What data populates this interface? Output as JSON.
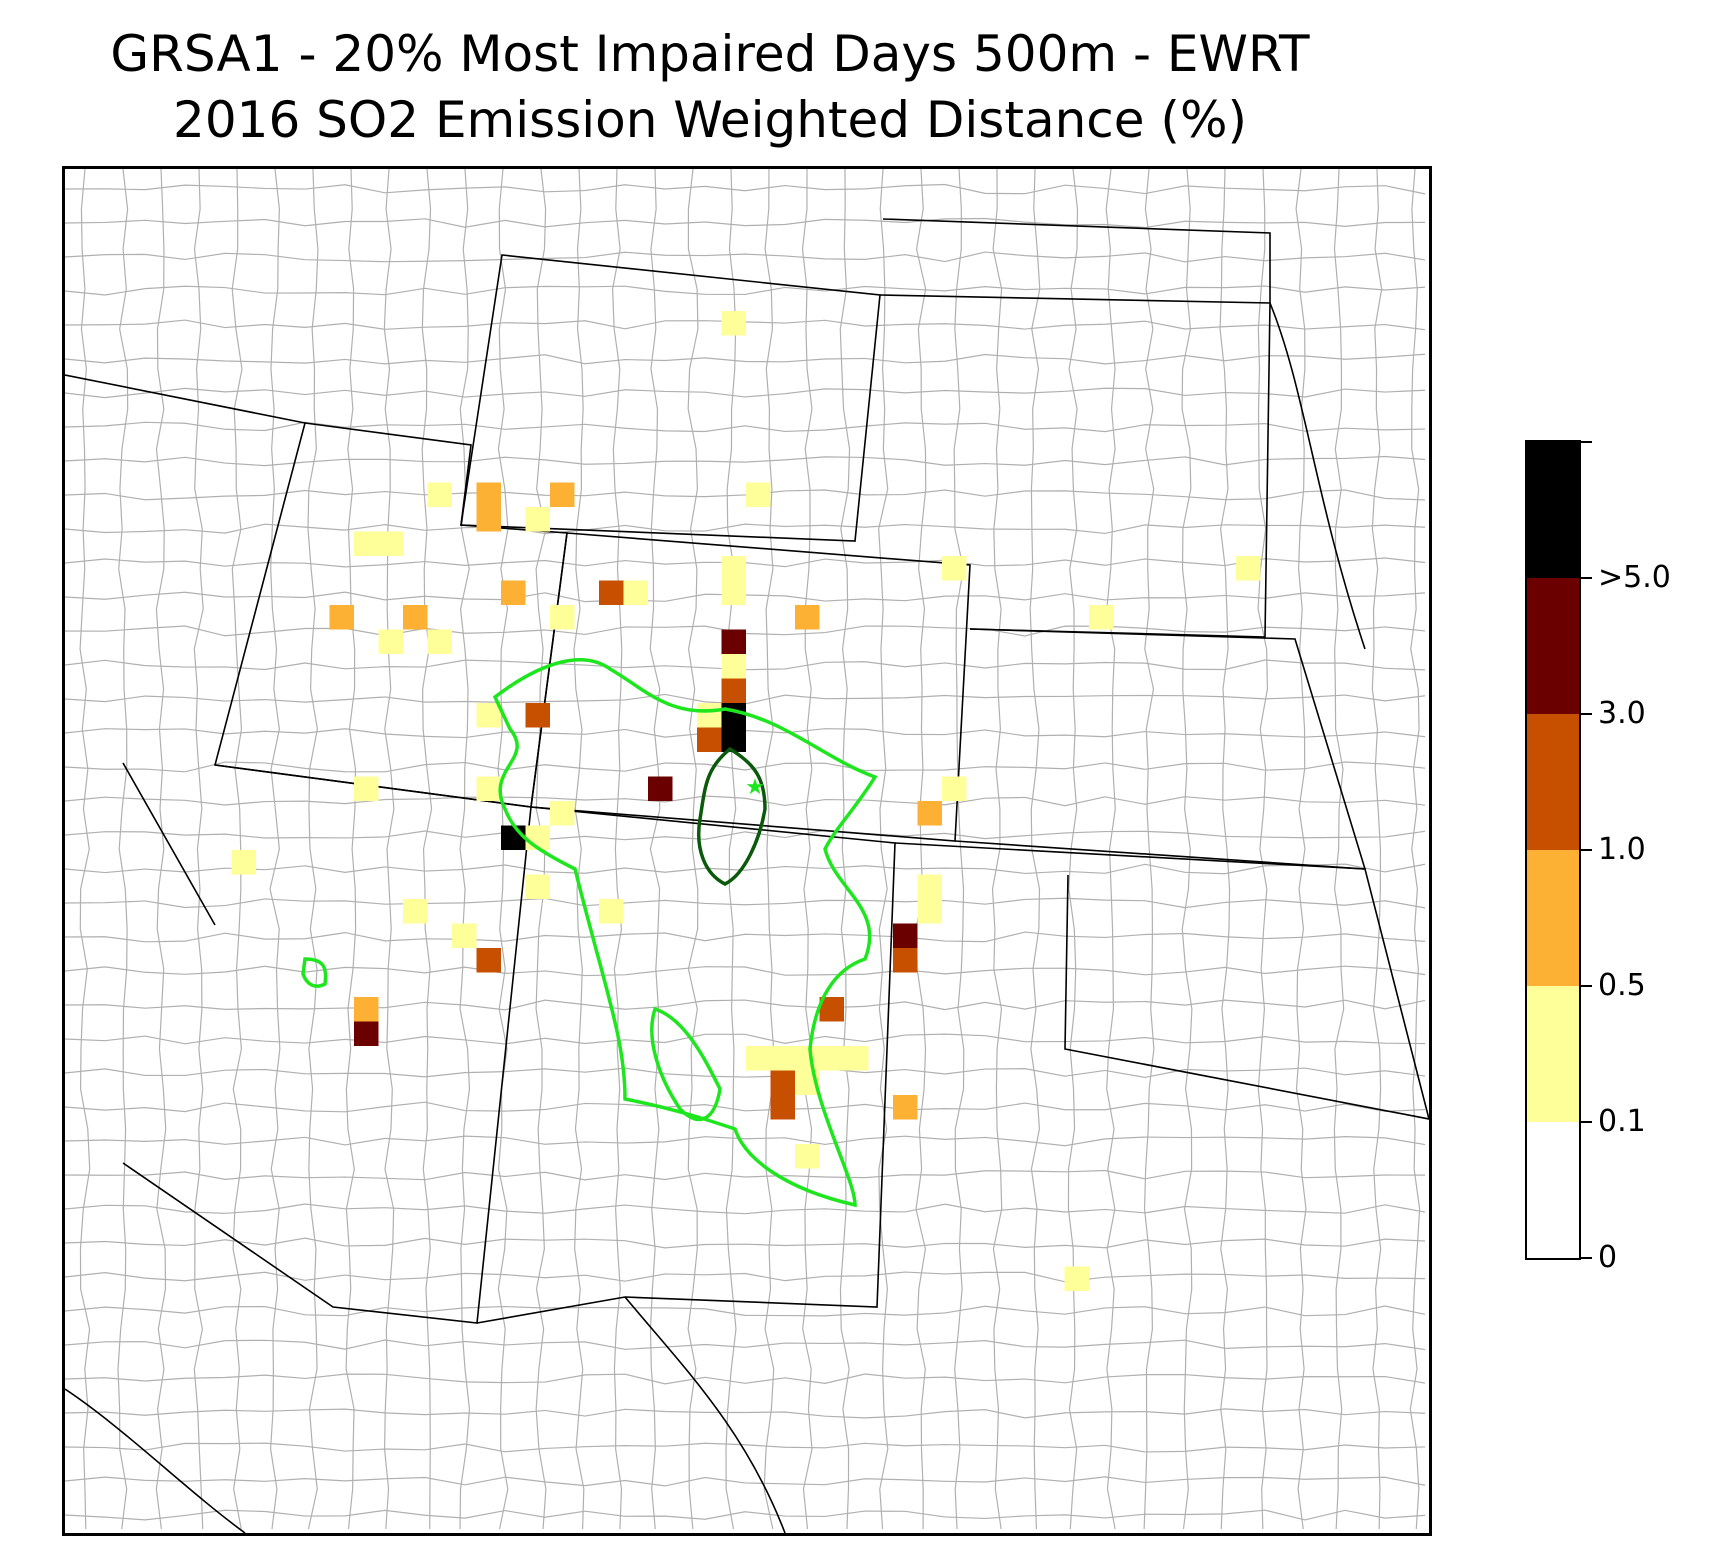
{
  "title": {
    "line1": "GRSA1 - 20% Most Impaired Days 500m - EWRT",
    "line2": "2016 SO2 Emission Weighted Distance (%)"
  },
  "colorbar": {
    "segments": [
      {
        "color": "#ffffff",
        "range": "0-0.1"
      },
      {
        "color": "#ffff99",
        "range": "0.1-0.5"
      },
      {
        "color": "#fdb134",
        "range": "0.5-1.0"
      },
      {
        "color": "#c75000",
        "range": "1.0-3.0"
      },
      {
        "color": "#6b0000",
        "range": "3.0-5.0"
      },
      {
        "color": "#000000",
        "range": ">5.0"
      }
    ],
    "tick_labels": [
      "0",
      "0.1",
      "0.5",
      "1.0",
      "3.0",
      ">5.0"
    ]
  },
  "map": {
    "receptor_marker": "green-star-icon",
    "contour_colors": {
      "outer": "#1ee61e",
      "inner": "#0b5a0b"
    },
    "state_border_color": "#000000",
    "county_border_color": "#aaaaaa"
  }
}
